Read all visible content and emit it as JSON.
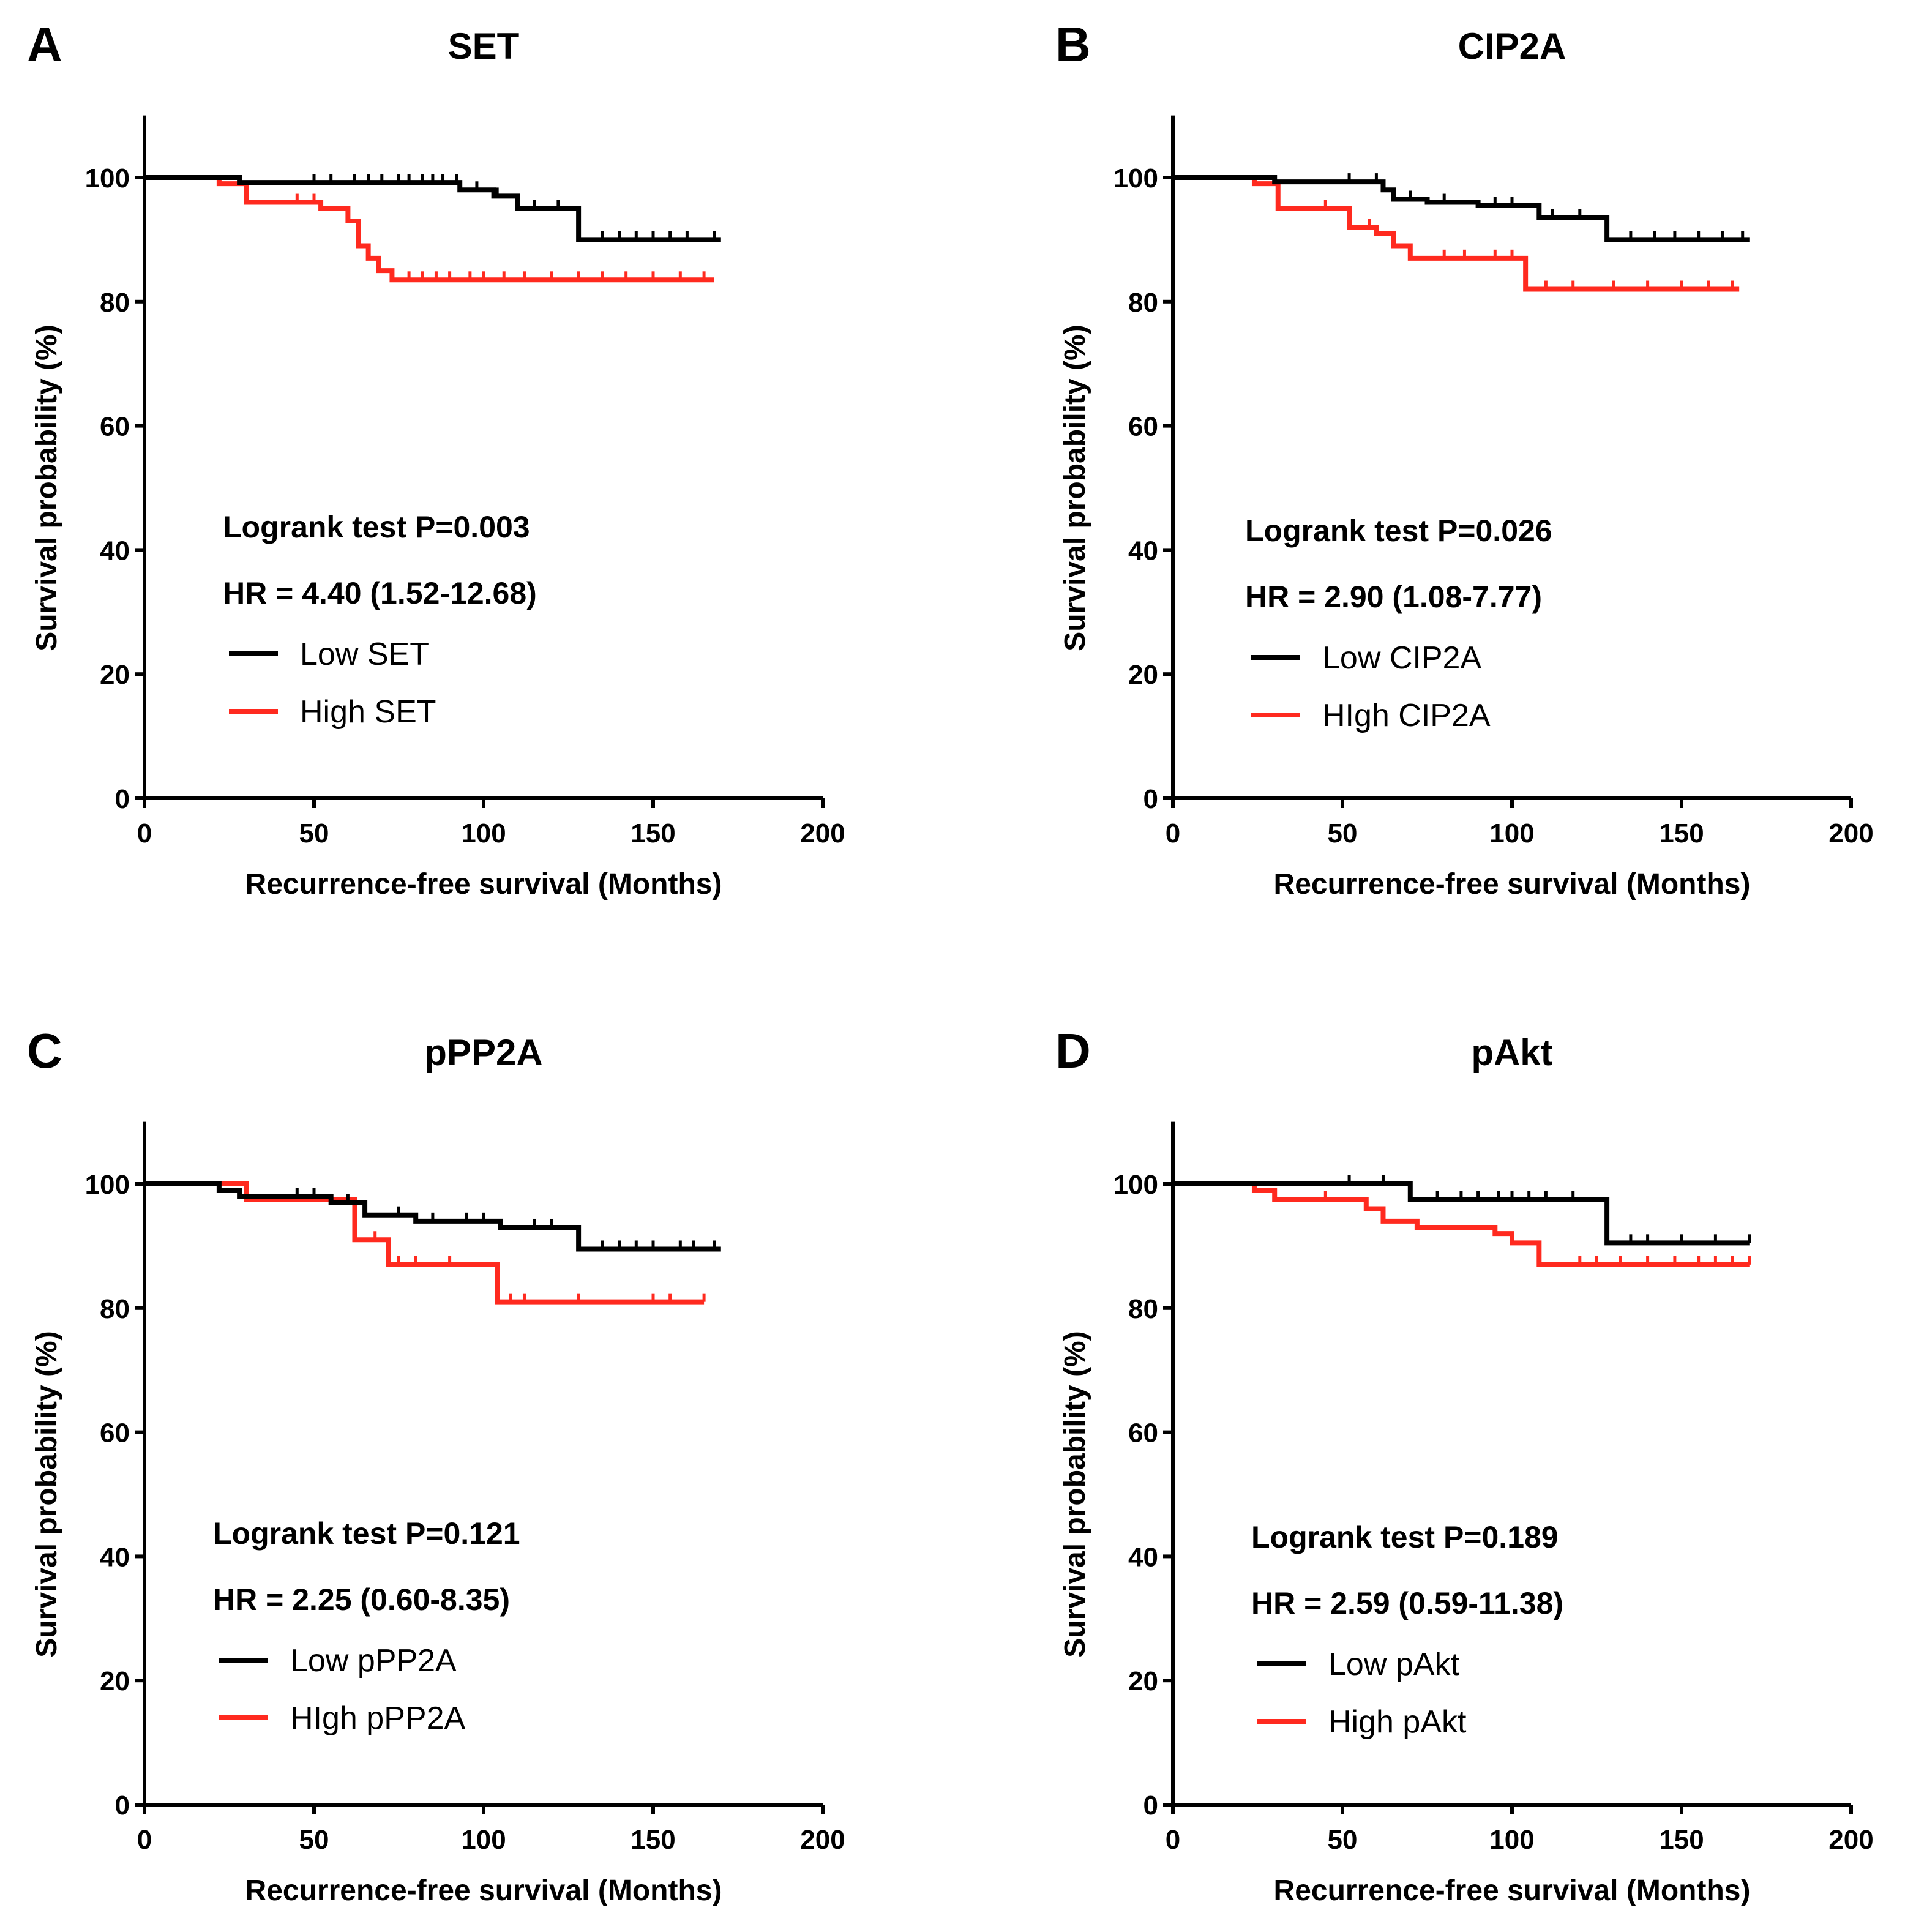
{
  "colors": {
    "low": "#000000",
    "high": "#ff2a1f"
  },
  "chart_data": [
    {
      "type": "line",
      "panel": "A",
      "title": "SET",
      "xlabel": "Recurrence-free survival (Months)",
      "ylabel": "Survival probability (%)",
      "xlim": [
        0,
        200
      ],
      "ylim": [
        0,
        110
      ],
      "xticks": [
        0,
        50,
        100,
        150,
        200
      ],
      "yticks": [
        0,
        20,
        40,
        60,
        80,
        100
      ],
      "annotations": [
        "Logrank test P=0.003",
        "HR = 4.40 (1.52-12.68)"
      ],
      "series": [
        {
          "name": "Low SET",
          "color": "#000000",
          "steps": [
            [
              0,
              100
            ],
            [
              28,
              99.2
            ],
            [
              93,
              98
            ],
            [
              103,
              97
            ],
            [
              110,
              95
            ],
            [
              128,
              90
            ],
            [
              170,
              90
            ]
          ],
          "censor": [
            50,
            55,
            62,
            66,
            70,
            75,
            78,
            82,
            85,
            88,
            92,
            98,
            104,
            115,
            122,
            135,
            140,
            145,
            150,
            155,
            160,
            168
          ]
        },
        {
          "name": "High SET",
          "color": "#ff2a1f",
          "steps": [
            [
              0,
              100
            ],
            [
              22,
              99
            ],
            [
              30,
              96
            ],
            [
              52,
              95
            ],
            [
              60,
              93
            ],
            [
              63,
              89
            ],
            [
              66,
              87
            ],
            [
              69,
              85
            ],
            [
              73,
              83.5
            ],
            [
              168,
              83.5
            ]
          ],
          "censor": [
            45,
            50,
            78,
            82,
            86,
            90,
            96,
            100,
            106,
            112,
            120,
            128,
            135,
            142,
            150,
            158,
            165
          ]
        }
      ]
    },
    {
      "type": "line",
      "panel": "B",
      "title": "CIP2A",
      "xlabel": "Recurrence-free survival (Months)",
      "ylabel": "Survival probability (%)",
      "xlim": [
        0,
        200
      ],
      "ylim": [
        0,
        110
      ],
      "xticks": [
        0,
        50,
        100,
        150,
        200
      ],
      "yticks": [
        0,
        20,
        40,
        60,
        80,
        100
      ],
      "annotations": [
        "Logrank test P=0.026",
        "HR = 2.90 (1.08-7.77)"
      ],
      "series": [
        {
          "name": "Low CIP2A",
          "color": "#000000",
          "steps": [
            [
              0,
              100
            ],
            [
              30,
              99.3
            ],
            [
              62,
              98
            ],
            [
              65,
              96.5
            ],
            [
              75,
              96
            ],
            [
              90,
              95.5
            ],
            [
              108,
              93.5
            ],
            [
              128,
              90
            ],
            [
              170,
              90
            ]
          ],
          "censor": [
            52,
            60,
            70,
            80,
            95,
            100,
            112,
            120,
            135,
            142,
            148,
            155,
            162,
            168
          ]
        },
        {
          "name": "HIgh CIP2A",
          "color": "#ff2a1f",
          "steps": [
            [
              0,
              100
            ],
            [
              24,
              99
            ],
            [
              31,
              95
            ],
            [
              52,
              92
            ],
            [
              60,
              91
            ],
            [
              65,
              89
            ],
            [
              70,
              87
            ],
            [
              104,
              82
            ],
            [
              167,
              82
            ]
          ],
          "censor": [
            45,
            58,
            80,
            86,
            95,
            100,
            110,
            118,
            130,
            140,
            150,
            158,
            165
          ]
        }
      ]
    },
    {
      "type": "line",
      "panel": "C",
      "title": "pPP2A",
      "xlabel": "Recurrence-free survival (Months)",
      "ylabel": "Survival probability (%)",
      "xlim": [
        0,
        200
      ],
      "ylim": [
        0,
        110
      ],
      "xticks": [
        0,
        50,
        100,
        150,
        200
      ],
      "yticks": [
        0,
        20,
        40,
        60,
        80,
        100
      ],
      "annotations": [
        "Logrank test P=0.121",
        "HR = 2.25 (0.60-8.35)"
      ],
      "series": [
        {
          "name": "Low pPP2A",
          "color": "#000000",
          "steps": [
            [
              0,
              100
            ],
            [
              22,
              99
            ],
            [
              28,
              98
            ],
            [
              55,
              97
            ],
            [
              65,
              95
            ],
            [
              80,
              94
            ],
            [
              105,
              93
            ],
            [
              128,
              89.5
            ],
            [
              170,
              89.5
            ]
          ],
          "censor": [
            45,
            50,
            60,
            75,
            85,
            95,
            100,
            115,
            120,
            135,
            140,
            145,
            150,
            158,
            162,
            168
          ]
        },
        {
          "name": "HIgh pPP2A",
          "color": "#ff2a1f",
          "steps": [
            [
              0,
              100
            ],
            [
              30,
              97.5
            ],
            [
              62,
              91
            ],
            [
              72,
              87
            ],
            [
              104,
              81
            ],
            [
              165,
              81
            ]
          ],
          "censor": [
            68,
            75,
            80,
            90,
            108,
            112,
            128,
            150,
            155,
            165
          ]
        }
      ]
    },
    {
      "type": "line",
      "panel": "D",
      "title": "pAkt",
      "xlabel": "Recurrence-free survival (Months)",
      "ylabel": "Survival probability (%)",
      "xlim": [
        0,
        200
      ],
      "ylim": [
        0,
        110
      ],
      "xticks": [
        0,
        50,
        100,
        150,
        200
      ],
      "yticks": [
        0,
        20,
        40,
        60,
        80,
        100
      ],
      "annotations": [
        "Logrank test P=0.189",
        "HR = 2.59 (0.59-11.38)"
      ],
      "series": [
        {
          "name": "Low pAkt",
          "color": "#000000",
          "steps": [
            [
              0,
              100
            ],
            [
              70,
              97.5
            ],
            [
              128,
              90.5
            ],
            [
              170,
              90.5
            ]
          ],
          "censor": [
            52,
            62,
            70,
            78,
            85,
            90,
            96,
            100,
            105,
            110,
            118,
            135,
            140,
            150,
            160,
            170
          ]
        },
        {
          "name": "High pAkt",
          "color": "#ff2a1f",
          "steps": [
            [
              0,
              100
            ],
            [
              24,
              99
            ],
            [
              30,
              97.5
            ],
            [
              57,
              96
            ],
            [
              62,
              94
            ],
            [
              72,
              93
            ],
            [
              95,
              92
            ],
            [
              100,
              90.5
            ],
            [
              108,
              87
            ],
            [
              170,
              87
            ]
          ],
          "censor": [
            45,
            120,
            125,
            132,
            140,
            148,
            155,
            160,
            165,
            170
          ]
        }
      ]
    }
  ]
}
